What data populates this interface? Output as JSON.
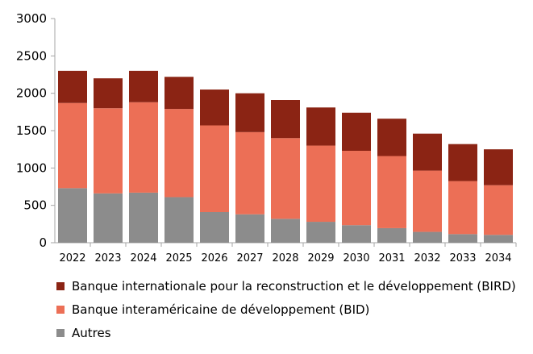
{
  "chart_data": {
    "type": "bar",
    "stacked": true,
    "categories": [
      "2022",
      "2023",
      "2024",
      "2025",
      "2026",
      "2027",
      "2028",
      "2029",
      "2030",
      "2031",
      "2032",
      "2033",
      "2034"
    ],
    "series": [
      {
        "name": "Autres",
        "color": "#8c8c8c",
        "values": [
          730,
          660,
          670,
          610,
          410,
          380,
          320,
          280,
          235,
          195,
          145,
          115,
          105
        ]
      },
      {
        "name": "Banque interaméricaine de développement (BID)",
        "color": "#ec6f56",
        "values": [
          1140,
          1140,
          1210,
          1180,
          1160,
          1100,
          1080,
          1020,
          995,
          965,
          820,
          710,
          665
        ]
      },
      {
        "name": "Banque internationale pour la reconstruction et le développement (BIRD)",
        "color": "#8b2414",
        "values": [
          430,
          400,
          420,
          430,
          480,
          520,
          510,
          510,
          510,
          500,
          495,
          495,
          480
        ]
      }
    ],
    "legend_order": [
      2,
      1,
      0
    ],
    "ylim": [
      0,
      3000
    ],
    "yticks": [
      0,
      500,
      1000,
      1500,
      2000,
      2500,
      3000
    ],
    "xlabel": "",
    "ylabel": "",
    "title": "",
    "grid": false,
    "legend_position": "bottom"
  }
}
